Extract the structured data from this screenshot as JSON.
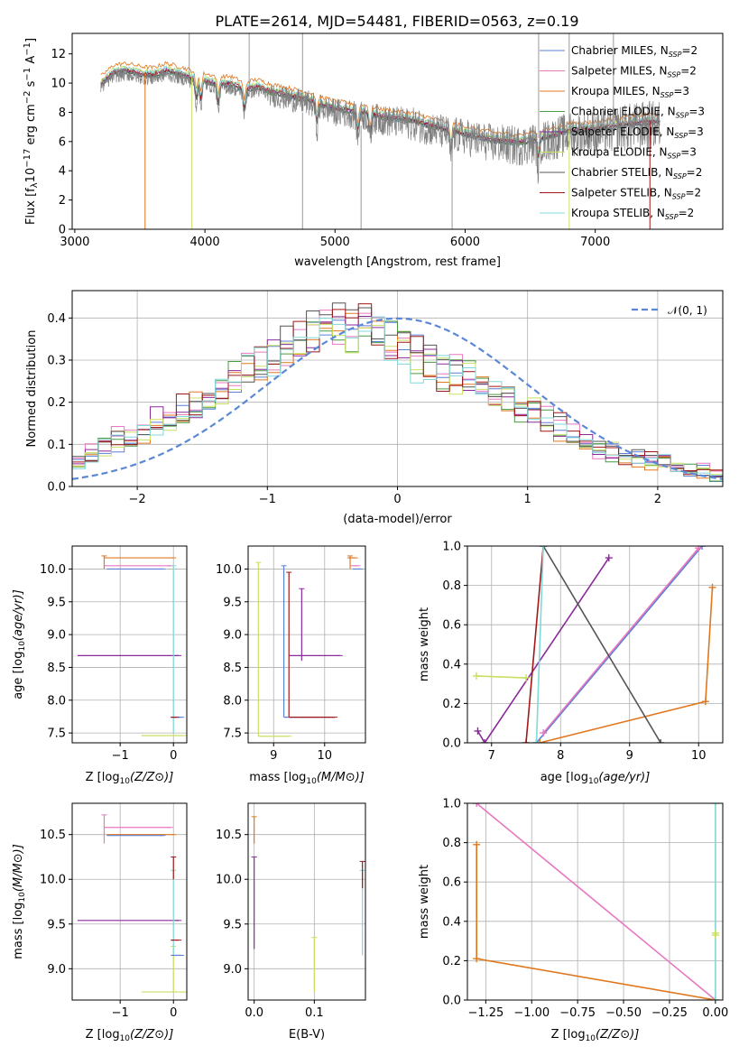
{
  "chart_data": [
    {
      "type": "line",
      "title": "PLATE=2614, MJD=54481, FIBERID=0563, z=0.19",
      "xlabel": "wavelength [Angstrom, rest frame]",
      "ylabel_parts": [
        "Flux [f",
        "λ",
        "10",
        "−17",
        " erg cm",
        "−2",
        " s",
        "−1",
        " A",
        "−1",
        "]"
      ],
      "xlim": [
        2980,
        7980
      ],
      "ylim": [
        0,
        13.4
      ],
      "xticks": [
        3000,
        4000,
        5000,
        6000,
        7000
      ],
      "yticks": [
        0,
        2,
        4,
        6,
        8,
        10,
        12
      ],
      "grid": false,
      "legend": "right",
      "series": [
        {
          "name": "Chabrier MILES",
          "nssp": "2",
          "color": "#5b7fd6"
        },
        {
          "name": "Salpeter MILES",
          "nssp": "2",
          "color": "#e878c0"
        },
        {
          "name": "Kroupa MILES",
          "nssp": "3",
          "color": "#e07820"
        },
        {
          "name": "Chabrier ELODIE",
          "nssp": "3",
          "color": "#4a9a40"
        },
        {
          "name": "Salpeter ELODIE",
          "nssp": "3",
          "color": "#8a2a9a"
        },
        {
          "name": "Kroupa ELODIE",
          "nssp": "3",
          "color": "#c8e060"
        },
        {
          "name": "Chabrier STELIB",
          "nssp": "2",
          "color": "#555555"
        },
        {
          "name": "Salpeter STELIB",
          "nssp": "2",
          "color": "#a01818"
        },
        {
          "name": "Kroupa STELIB",
          "nssp": "2",
          "color": "#80d8d8"
        }
      ],
      "data_color": "#808080",
      "continuum": [
        [
          3200,
          10.0
        ],
        [
          3300,
          10.8
        ],
        [
          3400,
          10.9
        ],
        [
          3500,
          10.7
        ],
        [
          3600,
          10.6
        ],
        [
          3700,
          10.9
        ],
        [
          3800,
          10.7
        ],
        [
          3900,
          10.4
        ],
        [
          4000,
          10.2
        ],
        [
          4100,
          10.0
        ],
        [
          4200,
          10.0
        ],
        [
          4300,
          9.6
        ],
        [
          4400,
          9.8
        ],
        [
          4500,
          9.5
        ],
        [
          4600,
          9.3
        ],
        [
          4700,
          9.1
        ],
        [
          4800,
          8.9
        ],
        [
          4900,
          8.6
        ],
        [
          5000,
          8.3
        ],
        [
          5200,
          8.1
        ],
        [
          5400,
          7.7
        ],
        [
          5600,
          7.5
        ],
        [
          5800,
          7.0
        ],
        [
          6000,
          6.6
        ],
        [
          6200,
          6.2
        ],
        [
          6400,
          6.0
        ],
        [
          6600,
          6.3
        ],
        [
          6800,
          6.8
        ],
        [
          7000,
          6.9
        ],
        [
          7200,
          7.2
        ],
        [
          7400,
          7.4
        ],
        [
          7500,
          7.4
        ]
      ],
      "absorption_lines": [
        3934,
        3969,
        4102,
        4304,
        4861,
        5175,
        5270,
        5890,
        6563
      ],
      "spikes_up": [
        3880,
        4340,
        4750,
        6565,
        6800,
        7140
      ],
      "spikes_down": [
        4750,
        5200,
        5900
      ]
    },
    {
      "type": "line",
      "xlabel": "(data-model)/error",
      "ylabel": "Normed distribution",
      "xlim": [
        -2.5,
        2.5
      ],
      "ylim": [
        0,
        0.465
      ],
      "xticks": [
        -2,
        -1,
        0,
        1,
        2
      ],
      "yticks": [
        0.0,
        0.1,
        0.2,
        0.3,
        0.4
      ],
      "xtick_labels": [
        "−2",
        "−1",
        "0",
        "1",
        "2"
      ],
      "ytick_labels": [
        "0.0",
        "0.1",
        "0.2",
        "0.3",
        "0.4"
      ],
      "grid": true,
      "legend": "top-right",
      "gaussian_label": "𝒩(0, 1)",
      "gaussian_color": "#5b88d6",
      "bin_width": 0.1,
      "hist_shape": [
        [
          -2.5,
          0.05
        ],
        [
          -2.3,
          0.09
        ],
        [
          -2.0,
          0.13
        ],
        [
          -1.7,
          0.17
        ],
        [
          -1.4,
          0.22
        ],
        [
          -1.0,
          0.3
        ],
        [
          -0.7,
          0.36
        ],
        [
          -0.5,
          0.4
        ],
        [
          -0.3,
          0.38
        ],
        [
          -0.1,
          0.36
        ],
        [
          0.1,
          0.32
        ],
        [
          0.3,
          0.28
        ],
        [
          0.6,
          0.25
        ],
        [
          0.9,
          0.2
        ],
        [
          1.2,
          0.15
        ],
        [
          1.5,
          0.1
        ],
        [
          1.8,
          0.07
        ],
        [
          2.1,
          0.05
        ],
        [
          2.5,
          0.03
        ]
      ]
    },
    {
      "type": "scatter",
      "xlabel": "Z [log10(Z/Z⊙)]",
      "ylabel": "age  [log10(age/yr)]",
      "xlim": [
        -1.9,
        0.25
      ],
      "ylim": [
        7.35,
        10.35
      ],
      "xticks": [
        -1,
        0
      ],
      "xtick_labels": [
        "−1",
        "0"
      ],
      "yticks": [
        7.5,
        8.0,
        8.5,
        9.0,
        9.5,
        10.0
      ],
      "ytick_labels": [
        "7.5",
        "8.0",
        "8.5",
        "9.0",
        "9.5",
        "10.0"
      ],
      "grid": true,
      "segments": [
        {
          "c": "#e07820",
          "x": [
            -1.3,
            0.0
          ],
          "y": [
            10.17,
            10.17
          ]
        },
        {
          "c": "#e878c0",
          "x": [
            -1.3,
            -0.05
          ],
          "y": [
            10.05,
            10.05
          ]
        },
        {
          "c": "#5b7fd6",
          "x": [
            -1.25,
            -0.2
          ],
          "y": [
            10.0,
            10.0
          ]
        },
        {
          "c": "#8a2a9a",
          "x": [
            -1.8,
            0.1
          ],
          "y": [
            8.68,
            8.68
          ]
        },
        {
          "c": "#c8e060",
          "x": [
            -0.6,
            0.2
          ],
          "y": [
            7.46,
            7.46
          ]
        },
        {
          "c": "#5b7fd6",
          "x": [
            -0.05,
            0.15
          ],
          "y": [
            7.74,
            7.74
          ]
        },
        {
          "c": "#80d8d8",
          "x": [
            0.0,
            0.0
          ],
          "y": [
            7.5,
            10.05
          ]
        },
        {
          "c": "#e07820",
          "x": [
            -1.3,
            -1.3
          ],
          "y": [
            10.0,
            10.2
          ]
        },
        {
          "c": "#a01818",
          "x": [
            -0.05,
            0.05
          ],
          "y": [
            7.74,
            7.74
          ]
        }
      ]
    },
    {
      "type": "scatter",
      "xlabel": "mass [log10(M/M⊙)]",
      "xlim": [
        8.5,
        10.8
      ],
      "ylim": [
        7.35,
        10.35
      ],
      "xticks": [
        9,
        10
      ],
      "xtick_labels": [
        "9",
        "10"
      ],
      "yticks": [
        7.5,
        8.0,
        8.5,
        9.0,
        9.5,
        10.0
      ],
      "ytick_labels": [
        "7.5",
        "8.0",
        "8.5",
        "9.0",
        "9.5",
        "10.0"
      ],
      "grid": true,
      "segments": [
        {
          "c": "#c8e060",
          "x": [
            8.7,
            8.7
          ],
          "y": [
            7.45,
            10.1
          ]
        },
        {
          "c": "#c8e060",
          "x": [
            8.7,
            9.3
          ],
          "y": [
            7.45,
            7.45
          ]
        },
        {
          "c": "#5b7fd6",
          "x": [
            9.2,
            9.2
          ],
          "y": [
            7.74,
            10.05
          ]
        },
        {
          "c": "#a01818",
          "x": [
            9.3,
            9.3
          ],
          "y": [
            7.74,
            9.95
          ]
        },
        {
          "c": "#5b7fd6",
          "x": [
            9.2,
            10.1
          ],
          "y": [
            7.74,
            7.74
          ]
        },
        {
          "c": "#a01818",
          "x": [
            9.3,
            10.2
          ],
          "y": [
            7.74,
            7.74
          ]
        },
        {
          "c": "#8a2a9a",
          "x": [
            9.55,
            9.55
          ],
          "y": [
            8.6,
            9.7
          ]
        },
        {
          "c": "#8a2a9a",
          "x": [
            9.3,
            10.3
          ],
          "y": [
            8.68,
            8.68
          ]
        },
        {
          "c": "#e07820",
          "x": [
            10.5,
            10.5
          ],
          "y": [
            10.0,
            10.2
          ]
        },
        {
          "c": "#e07820",
          "x": [
            10.45,
            10.6
          ],
          "y": [
            10.17,
            10.17
          ]
        },
        {
          "c": "#e878c0",
          "x": [
            10.52,
            10.65
          ],
          "y": [
            10.05,
            10.05
          ]
        },
        {
          "c": "#5b7fd6",
          "x": [
            10.55,
            10.7
          ],
          "y": [
            10.0,
            10.0
          ]
        }
      ]
    },
    {
      "type": "line",
      "xlabel": "age  [log10(age/yr)]",
      "ylabel": "mass weight",
      "xlim": [
        6.65,
        10.35
      ],
      "ylim": [
        0,
        1
      ],
      "xticks": [
        7,
        8,
        9,
        10
      ],
      "xtick_labels": [
        "7",
        "8",
        "9",
        "10"
      ],
      "yticks": [
        0.0,
        0.2,
        0.4,
        0.6,
        0.8,
        1.0
      ],
      "ytick_labels": [
        "0.0",
        "0.2",
        "0.4",
        "0.6",
        "0.8",
        "1.0"
      ],
      "grid": true,
      "series": [
        {
          "c": "#5b7fd6",
          "x": [
            7.65,
            10.05
          ],
          "y": [
            0.0,
            1.0
          ]
        },
        {
          "c": "#e878c0",
          "x": [
            7.75,
            10.0
          ],
          "y": [
            0.05,
            0.99
          ]
        },
        {
          "c": "#e07820",
          "x": [
            7.7,
            10.1,
            10.2
          ],
          "y": [
            0.0,
            0.21,
            0.79
          ]
        },
        {
          "c": "#8a2a9a",
          "x": [
            6.8,
            6.9,
            8.7
          ],
          "y": [
            0.06,
            0.0,
            0.94
          ]
        },
        {
          "c": "#c8e060",
          "x": [
            6.78,
            7.5
          ],
          "y": [
            0.34,
            0.33
          ]
        },
        {
          "c": "#555555",
          "x": [
            7.75,
            9.45
          ],
          "y": [
            1.0,
            0.0
          ]
        },
        {
          "c": "#a01818",
          "x": [
            7.5,
            7.75
          ],
          "y": [
            0.0,
            1.0
          ]
        },
        {
          "c": "#80d8d8",
          "x": [
            7.65,
            7.75
          ],
          "y": [
            0.0,
            1.0
          ]
        }
      ]
    },
    {
      "type": "scatter",
      "xlabel": "Z [log10(Z/Z⊙)]",
      "ylabel": "mass [log10(M/M⊙)]",
      "xlim": [
        -1.9,
        0.25
      ],
      "ylim": [
        8.65,
        10.85
      ],
      "xticks": [
        -1,
        0
      ],
      "xtick_labels": [
        "−1",
        "0"
      ],
      "yticks": [
        9.0,
        9.5,
        10.0,
        10.5
      ],
      "ytick_labels": [
        "9.0",
        "9.5",
        "10.0",
        "10.5"
      ],
      "grid": true,
      "segments": [
        {
          "c": "#e878c0",
          "x": [
            -1.3,
            -0.05
          ],
          "y": [
            10.58,
            10.58
          ]
        },
        {
          "c": "#e07820",
          "x": [
            -1.25,
            0.0
          ],
          "y": [
            10.5,
            10.5
          ]
        },
        {
          "c": "#5b7fd6",
          "x": [
            -1.25,
            -0.2
          ],
          "y": [
            10.49,
            10.49
          ]
        },
        {
          "c": "#e878c0",
          "x": [
            -1.3,
            -1.3
          ],
          "y": [
            10.4,
            10.72
          ]
        },
        {
          "c": "#8a2a9a",
          "x": [
            -1.8,
            0.1
          ],
          "y": [
            9.54,
            9.54
          ]
        },
        {
          "c": "#c8e060",
          "x": [
            -0.6,
            0.2
          ],
          "y": [
            8.74,
            8.74
          ]
        },
        {
          "c": "#c8e060",
          "x": [
            0.0,
            0.0
          ],
          "y": [
            8.74,
            9.25
          ]
        },
        {
          "c": "#80d8d8",
          "x": [
            0.0,
            0.0
          ],
          "y": [
            9.15,
            10.1
          ]
        },
        {
          "c": "#a01818",
          "x": [
            -0.05,
            0.1
          ],
          "y": [
            9.32,
            9.32
          ]
        },
        {
          "c": "#5b7fd6",
          "x": [
            -0.05,
            0.15
          ],
          "y": [
            9.15,
            9.15
          ]
        },
        {
          "c": "#a01818",
          "x": [
            0.0,
            0.0
          ],
          "y": [
            10.0,
            10.25
          ]
        }
      ]
    },
    {
      "type": "scatter",
      "xlabel": "E(B-V)",
      "xlim": [
        -0.01,
        0.185
      ],
      "ylim": [
        8.65,
        10.85
      ],
      "xticks": [
        0.0,
        0.1
      ],
      "xtick_labels": [
        "0.0",
        "0.1"
      ],
      "yticks": [
        9.0,
        9.5,
        10.0,
        10.5
      ],
      "ytick_labels": [
        "9.0",
        "9.5",
        "10.0",
        "10.5"
      ],
      "grid": true,
      "segments": [
        {
          "c": "#e07820",
          "x": [
            0.0,
            0.0
          ],
          "y": [
            10.4,
            10.7
          ]
        },
        {
          "c": "#8a2a9a",
          "x": [
            0.0,
            0.0
          ],
          "y": [
            9.22,
            10.25
          ]
        },
        {
          "c": "#c8e060",
          "x": [
            0.1,
            0.1
          ],
          "y": [
            8.74,
            9.35
          ]
        },
        {
          "c": "#80d8d8",
          "x": [
            0.18,
            0.18
          ],
          "y": [
            9.15,
            10.1
          ]
        },
        {
          "c": "#a01818",
          "x": [
            0.18,
            0.18
          ],
          "y": [
            9.9,
            10.2
          ]
        }
      ]
    },
    {
      "type": "line",
      "xlabel": "Z [log10(Z/Z⊙)]",
      "ylabel": "mass weight",
      "xlim": [
        -1.35,
        0.04
      ],
      "ylim": [
        0,
        1
      ],
      "xticks": [
        -1.25,
        -1.0,
        -0.75,
        -0.5,
        -0.25,
        0.0
      ],
      "xtick_labels": [
        "−1.25",
        "−1.00",
        "−0.75",
        "−0.50",
        "−0.25",
        "0.00"
      ],
      "yticks": [
        0.0,
        0.2,
        0.4,
        0.6,
        0.8,
        1.0
      ],
      "ytick_labels": [
        "0.0",
        "0.2",
        "0.4",
        "0.6",
        "0.8",
        "1.0"
      ],
      "grid": true,
      "series": [
        {
          "c": "#e878c0",
          "x": [
            -1.3,
            0.0
          ],
          "y": [
            1.0,
            0.0
          ]
        },
        {
          "c": "#e07820",
          "x": [
            -1.3,
            -1.3,
            0.0
          ],
          "y": [
            0.79,
            0.21,
            0.0
          ]
        },
        {
          "c": "#80d8d8",
          "x": [
            0.0,
            0.0
          ],
          "y": [
            0.0,
            1.0
          ]
        },
        {
          "c": "#c8e060",
          "x": [
            0.0,
            0.0
          ],
          "y": [
            0.33,
            0.34
          ]
        }
      ]
    }
  ]
}
